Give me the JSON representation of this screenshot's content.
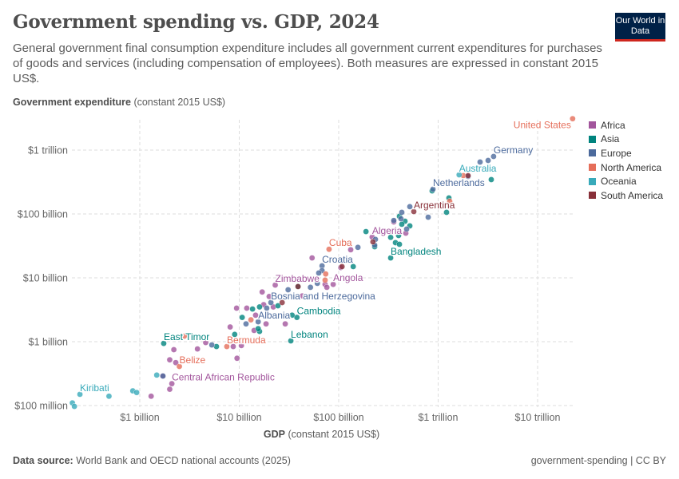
{
  "header": {
    "title": "Government spending vs. GDP, 2024",
    "subtitle": "General government final consumption expenditure includes all government current expenditures for purchases of goods and services (including compensation of employees). Both measures are expressed in constant 2015 US$.",
    "logo": "Our World in Data"
  },
  "footer": {
    "source_label": "Data source:",
    "source": "World Bank and OECD national accounts (2025)",
    "right": "government-spending | CC BY"
  },
  "chart_data": {
    "type": "scatter",
    "title": "Government spending vs. GDP, 2024",
    "ylabel_bold": "Government expenditure",
    "ylabel_rest": "(constant 2015 US$)",
    "xlabel_bold": "GDP",
    "xlabel_rest": "(constant 2015 US$)",
    "x_scale": "log",
    "y_scale": "log",
    "units": "billions of constant 2015 US$",
    "xlim": [
      0.2,
      25000
    ],
    "ylim": [
      0.1,
      3500
    ],
    "x_ticks": [
      {
        "v": 1,
        "label": "$1 billion"
      },
      {
        "v": 10,
        "label": "$10 billion"
      },
      {
        "v": 100,
        "label": "$100 billion"
      },
      {
        "v": 1000,
        "label": "$1 trillion"
      },
      {
        "v": 10000,
        "label": "$10 trillion"
      }
    ],
    "y_ticks": [
      {
        "v": 0.1,
        "label": "$100 million"
      },
      {
        "v": 1,
        "label": "$1 billion"
      },
      {
        "v": 10,
        "label": "$10 billion"
      },
      {
        "v": 100,
        "label": "$100 billion"
      },
      {
        "v": 1000,
        "label": "$1 trillion"
      }
    ],
    "grid": true,
    "legend_position": "right",
    "legend": [
      {
        "name": "Africa",
        "color": "#a2559c"
      },
      {
        "name": "Asia",
        "color": "#00847e"
      },
      {
        "name": "Europe",
        "color": "#4c6a9c"
      },
      {
        "name": "North America",
        "color": "#e56e5a"
      },
      {
        "name": "Oceania",
        "color": "#38aaba"
      },
      {
        "name": "South America",
        "color": "#883039"
      }
    ],
    "points": [
      {
        "r": "Africa",
        "x": 132,
        "y": 27.5
      },
      {
        "r": "Africa",
        "x": 54,
        "y": 20.5
      },
      {
        "r": "Africa",
        "x": 105,
        "y": 14.5
      },
      {
        "r": "Africa",
        "x": 23,
        "y": 7.7,
        "label": "Zimbabwe"
      },
      {
        "r": "Africa",
        "x": 73,
        "y": 7.9
      },
      {
        "r": "Africa",
        "x": 88,
        "y": 7.9,
        "label": "Angola"
      },
      {
        "r": "Africa",
        "x": 76,
        "y": 7.1
      },
      {
        "r": "Africa",
        "x": 17,
        "y": 6.0
      },
      {
        "r": "Africa",
        "x": 20,
        "y": 5.1
      },
      {
        "r": "Africa",
        "x": 17.6,
        "y": 3.8
      },
      {
        "r": "Africa",
        "x": 22,
        "y": 3.5
      },
      {
        "r": "Africa",
        "x": 11.9,
        "y": 3.35
      },
      {
        "r": "Africa",
        "x": 9.4,
        "y": 3.35
      },
      {
        "r": "Africa",
        "x": 14.6,
        "y": 2.6
      },
      {
        "r": "Africa",
        "x": 18.6,
        "y": 1.9
      },
      {
        "r": "Africa",
        "x": 29,
        "y": 1.9
      },
      {
        "r": "Africa",
        "x": 8.1,
        "y": 1.7
      },
      {
        "r": "Africa",
        "x": 14.1,
        "y": 1.5
      },
      {
        "r": "Africa",
        "x": 4.6,
        "y": 0.97
      },
      {
        "r": "Africa",
        "x": 10.5,
        "y": 0.87
      },
      {
        "r": "Africa",
        "x": 8.7,
        "y": 0.84
      },
      {
        "r": "Africa",
        "x": 3.8,
        "y": 0.77
      },
      {
        "r": "Africa",
        "x": 2.2,
        "y": 0.75
      },
      {
        "r": "Africa",
        "x": 9.5,
        "y": 0.55
      },
      {
        "r": "Africa",
        "x": 2.0,
        "y": 0.52
      },
      {
        "r": "Africa",
        "x": 2.3,
        "y": 0.47
      },
      {
        "r": "Africa",
        "x": 1.7,
        "y": 0.29
      },
      {
        "r": "Africa",
        "x": 2.1,
        "y": 0.22,
        "label": "Central African Republic"
      },
      {
        "r": "Africa",
        "x": 2.0,
        "y": 0.18
      },
      {
        "r": "Africa",
        "x": 1.3,
        "y": 0.14
      },
      {
        "r": "Africa",
        "x": 43,
        "y": 5.2
      },
      {
        "r": "Africa",
        "x": 358,
        "y": 75
      },
      {
        "r": "Africa",
        "x": 473,
        "y": 50
      },
      {
        "r": "Africa",
        "x": 217,
        "y": 43.5,
        "label": "Algeria"
      },
      {
        "r": "Asia",
        "x": 188,
        "y": 53
      },
      {
        "r": "Asia",
        "x": 140,
        "y": 15
      },
      {
        "r": "Asia",
        "x": 13.6,
        "y": 3.25
      },
      {
        "r": "Asia",
        "x": 16,
        "y": 3.5
      },
      {
        "r": "Asia",
        "x": 24.5,
        "y": 3.65
      },
      {
        "r": "Asia",
        "x": 39,
        "y": 7.3
      },
      {
        "r": "Asia",
        "x": 38,
        "y": 2.4,
        "label": "Cambodia"
      },
      {
        "r": "Asia",
        "x": 34,
        "y": 2.6
      },
      {
        "r": "Asia",
        "x": 10.7,
        "y": 2.4
      },
      {
        "r": "Asia",
        "x": 9.0,
        "y": 1.3
      },
      {
        "r": "Asia",
        "x": 16,
        "y": 1.45
      },
      {
        "r": "Asia",
        "x": 15.5,
        "y": 1.6
      },
      {
        "r": "Asia",
        "x": 33,
        "y": 1.03,
        "label": "Lebanon"
      },
      {
        "r": "Asia",
        "x": 1.74,
        "y": 0.94,
        "label": "East Timor"
      },
      {
        "r": "Asia",
        "x": 5.9,
        "y": 0.84
      },
      {
        "r": "Asia",
        "x": 333,
        "y": 43
      },
      {
        "r": "Asia",
        "x": 372,
        "y": 35.5
      },
      {
        "r": "Asia",
        "x": 408,
        "y": 33.5
      },
      {
        "r": "Asia",
        "x": 230,
        "y": 30.7
      },
      {
        "r": "Asia",
        "x": 333,
        "y": 20.5,
        "label": "Bangladesh"
      },
      {
        "r": "Asia",
        "x": 408,
        "y": 92
      },
      {
        "r": "Asia",
        "x": 464,
        "y": 77
      },
      {
        "r": "Asia",
        "x": 519,
        "y": 65
      },
      {
        "r": "Asia",
        "x": 431,
        "y": 69
      },
      {
        "r": "Asia",
        "x": 1283,
        "y": 178
      },
      {
        "r": "Asia",
        "x": 1214,
        "y": 106
      },
      {
        "r": "Asia",
        "x": 870,
        "y": 230
      },
      {
        "r": "Asia",
        "x": 3420,
        "y": 345
      },
      {
        "r": "Asia",
        "x": 400,
        "y": 46
      },
      {
        "r": "Europe",
        "x": 156,
        "y": 30
      },
      {
        "r": "Europe",
        "x": 68,
        "y": 15.4,
        "label": "Croatia"
      },
      {
        "r": "Europe",
        "x": 68,
        "y": 13
      },
      {
        "r": "Europe",
        "x": 63,
        "y": 11.9
      },
      {
        "r": "Europe",
        "x": 61,
        "y": 8.2
      },
      {
        "r": "Europe",
        "x": 52,
        "y": 7.1
      },
      {
        "r": "Europe",
        "x": 31,
        "y": 6.5
      },
      {
        "r": "Europe",
        "x": 20.8,
        "y": 4.1,
        "label": "Bosnia and Herzegovina"
      },
      {
        "r": "Europe",
        "x": 18.9,
        "y": 3.35
      },
      {
        "r": "Europe",
        "x": 11.7,
        "y": 1.9
      },
      {
        "r": "Europe",
        "x": 15.5,
        "y": 2.05,
        "label": "Albania"
      },
      {
        "r": "Europe",
        "x": 5.3,
        "y": 0.89
      },
      {
        "r": "Europe",
        "x": 1.71,
        "y": 0.29
      },
      {
        "r": "Europe",
        "x": 3610,
        "y": 794,
        "label": "Germany"
      },
      {
        "r": "Europe",
        "x": 3180,
        "y": 688
      },
      {
        "r": "Europe",
        "x": 2640,
        "y": 650
      },
      {
        "r": "Europe",
        "x": 2000,
        "y": 387
      },
      {
        "r": "Europe",
        "x": 887,
        "y": 244,
        "label": "Netherlands"
      },
      {
        "r": "Europe",
        "x": 519,
        "y": 130
      },
      {
        "r": "Europe",
        "x": 794,
        "y": 89
      },
      {
        "r": "Europe",
        "x": 431,
        "y": 106
      },
      {
        "r": "Europe",
        "x": 358,
        "y": 79
      },
      {
        "r": "Europe",
        "x": 423,
        "y": 84
      },
      {
        "r": "Europe",
        "x": 482,
        "y": 58
      },
      {
        "r": "Europe",
        "x": 234,
        "y": 40
      },
      {
        "r": "Europe",
        "x": 230,
        "y": 32.5
      },
      {
        "r": "North America",
        "x": 22500,
        "y": 3100,
        "label": "United States"
      },
      {
        "r": "North America",
        "x": 1790,
        "y": 398
      },
      {
        "r": "North America",
        "x": 80,
        "y": 28,
        "label": "Cuba"
      },
      {
        "r": "North America",
        "x": 74,
        "y": 11.5
      },
      {
        "r": "North America",
        "x": 73,
        "y": 9.2
      },
      {
        "r": "North America",
        "x": 13.1,
        "y": 2.2
      },
      {
        "r": "North America",
        "x": 7.5,
        "y": 0.84,
        "label": "Bermuda"
      },
      {
        "r": "North America",
        "x": 2.5,
        "y": 0.41,
        "label": "Belize"
      },
      {
        "r": "North America",
        "x": 2.8,
        "y": 1.22
      },
      {
        "r": "North America",
        "x": 1307,
        "y": 158
      },
      {
        "r": "Oceania",
        "x": 1625,
        "y": 410,
        "label": "Australia"
      },
      {
        "r": "Oceania",
        "x": 0.25,
        "y": 0.15,
        "label": "Kiribati"
      },
      {
        "r": "Oceania",
        "x": 0.49,
        "y": 0.14
      },
      {
        "r": "Oceania",
        "x": 0.85,
        "y": 0.17
      },
      {
        "r": "Oceania",
        "x": 0.93,
        "y": 0.16
      },
      {
        "r": "Oceania",
        "x": 1.48,
        "y": 0.3
      },
      {
        "r": "Oceania",
        "x": 0.21,
        "y": 0.11
      },
      {
        "r": "Oceania",
        "x": 0.22,
        "y": 0.097
      },
      {
        "r": "South America",
        "x": 2000,
        "y": 398
      },
      {
        "r": "South America",
        "x": 569,
        "y": 109,
        "label": "Argentina"
      },
      {
        "r": "South America",
        "x": 221,
        "y": 36.5
      },
      {
        "r": "South America",
        "x": 39,
        "y": 7.3
      },
      {
        "r": "South America",
        "x": 108,
        "y": 15
      },
      {
        "r": "South America",
        "x": 27,
        "y": 4.1
      }
    ]
  }
}
